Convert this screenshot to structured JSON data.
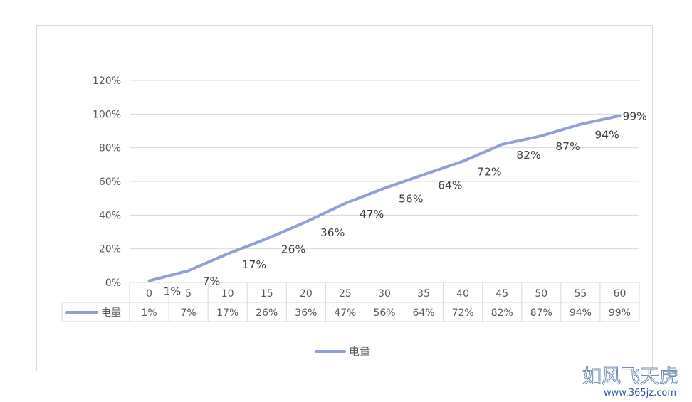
{
  "colors": {
    "series": "#8fa0d6",
    "grid": "#d9d9d9",
    "text": "#595959",
    "label": "#404040"
  },
  "watermark": {
    "line1": "如风飞天虎",
    "line2": "www.365jz.com"
  },
  "chart_data": {
    "type": "line",
    "categories": [
      "0",
      "5",
      "10",
      "15",
      "20",
      "25",
      "30",
      "35",
      "40",
      "45",
      "50",
      "55",
      "60"
    ],
    "series": [
      {
        "name": "电量",
        "values": [
          0.01,
          0.07,
          0.17,
          0.26,
          0.36,
          0.47,
          0.56,
          0.64,
          0.72,
          0.82,
          0.87,
          0.94,
          0.99
        ],
        "labels": [
          "1%",
          "7%",
          "17%",
          "26%",
          "36%",
          "47%",
          "56%",
          "64%",
          "72%",
          "82%",
          "87%",
          "94%",
          "99%"
        ]
      }
    ],
    "ylim": [
      0,
      1.2
    ],
    "yticks": [
      0,
      0.2,
      0.4,
      0.6,
      0.8,
      1.0,
      1.2
    ],
    "ytick_labels": [
      "0%",
      "20%",
      "40%",
      "60%",
      "80%",
      "100%",
      "120%"
    ],
    "grid": true,
    "data_table": true,
    "legend": "bottom"
  }
}
